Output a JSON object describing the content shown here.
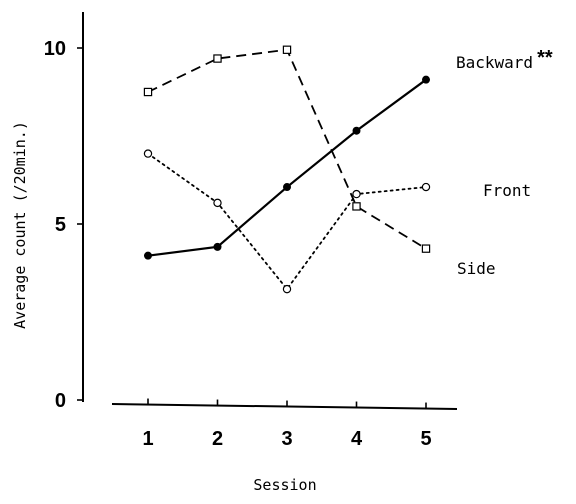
{
  "chart_data": {
    "type": "line",
    "title": "",
    "xlabel": "Session",
    "ylabel": "Average count (/20min.)",
    "x": [
      1,
      2,
      3,
      4,
      5
    ],
    "x_tick_labels": [
      "1",
      "2",
      "3",
      "4",
      "5"
    ],
    "y_ticks": [
      0,
      5,
      10
    ],
    "y_tick_labels": [
      "0",
      "5",
      "10"
    ],
    "ylim": [
      0,
      10.8
    ],
    "grid": false,
    "legend": "direct labels at right end of each series",
    "series": [
      {
        "name": "Backward",
        "annotation": "**",
        "values": [
          4.1,
          4.35,
          6.05,
          7.65,
          9.1
        ],
        "line_style": "solid",
        "marker": "filled-circle",
        "color": "#000000"
      },
      {
        "name": "Front",
        "values": [
          7.0,
          5.6,
          3.15,
          5.85,
          6.05
        ],
        "line_style": "dotted",
        "marker": "open-circle",
        "color": "#000000"
      },
      {
        "name": "Side",
        "values": [
          8.75,
          9.7,
          9.95,
          5.5,
          4.3
        ],
        "line_style": "dashed",
        "marker": "open-square",
        "color": "#000000"
      }
    ]
  }
}
